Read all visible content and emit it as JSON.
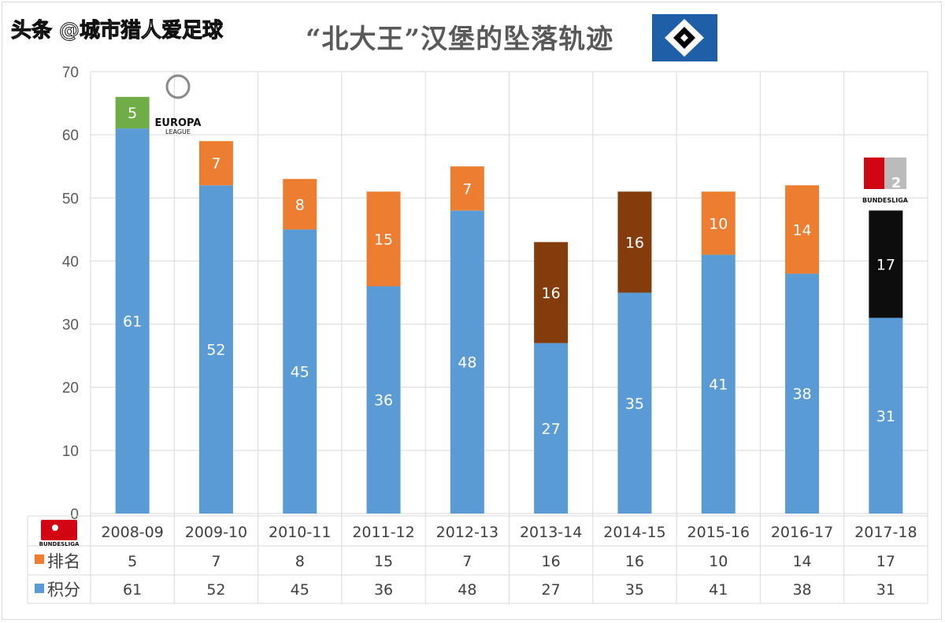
{
  "title": "“北大王”汉堡的坠落轨迹",
  "watermark": "头条 @城市猎人爱足球",
  "logos": {
    "hsv": "HSV club crest",
    "europa": "UEFA EUROPA LEAGUE",
    "bundesliga": "BUNDESLIGA",
    "bundesliga2": "2 BUNDESLIGA"
  },
  "chart_data": {
    "type": "bar",
    "stacked": true,
    "title": "“北大王”汉堡的坠落轨迹",
    "categories": [
      "2008-09",
      "2009-10",
      "2010-11",
      "2011-12",
      "2012-13",
      "2013-14",
      "2014-15",
      "2015-16",
      "2016-17",
      "2017-18"
    ],
    "series": [
      {
        "name": "积分",
        "values": [
          61,
          52,
          45,
          36,
          48,
          27,
          35,
          41,
          38,
          31
        ],
        "color": "#5b9bd5"
      },
      {
        "name": "排名",
        "values": [
          5,
          7,
          8,
          15,
          7,
          16,
          16,
          10,
          14,
          17
        ],
        "color": "#ed7d31",
        "point_colors": [
          "#70ad47",
          "#ed7d31",
          "#ed7d31",
          "#ed7d31",
          "#ed7d31",
          "#843c0c",
          "#843c0c",
          "#ed7d31",
          "#ed7d31",
          "#0d0d0d"
        ]
      }
    ],
    "ylim": [
      0,
      70
    ],
    "yticks": [
      0,
      10,
      20,
      30,
      40,
      50,
      60,
      70
    ],
    "grid": true,
    "data_table": true,
    "table_labels": {
      "rank": "排名",
      "points": "积分"
    }
  }
}
